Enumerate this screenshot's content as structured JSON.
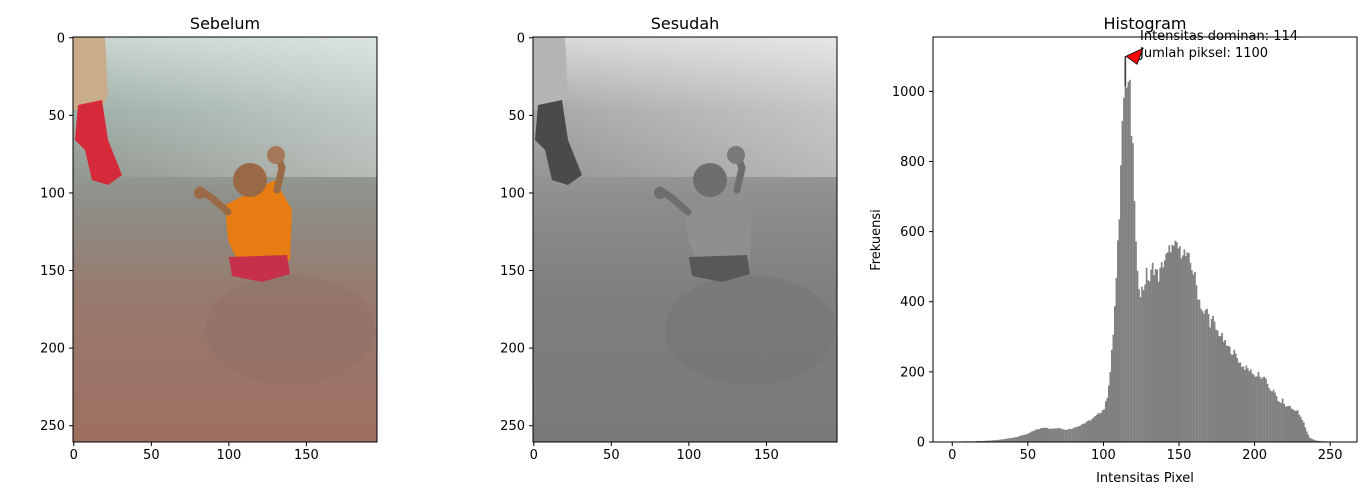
{
  "chart_data": [
    {
      "type": "image",
      "title": "Sebelum",
      "x_ticks": [
        0,
        50,
        100,
        150
      ],
      "y_ticks": [
        0,
        50,
        100,
        150,
        200,
        250
      ],
      "xlim": [
        -0.5,
        195.5
      ],
      "ylim": [
        260.5,
        -0.5
      ],
      "mode": "color"
    },
    {
      "type": "image",
      "title": "Sesudah",
      "x_ticks": [
        0,
        50,
        100,
        150
      ],
      "y_ticks": [
        0,
        50,
        100,
        150,
        200,
        250
      ],
      "xlim": [
        -0.5,
        195.5
      ],
      "ylim": [
        260.5,
        -0.5
      ],
      "mode": "grayscale"
    },
    {
      "type": "bar",
      "title": "Histogram",
      "xlabel": "Intensitas Pixel",
      "ylabel": "Frekuensi",
      "xlim": [
        -12.75,
        267.75
      ],
      "ylim": [
        0,
        1155
      ],
      "x_ticks": [
        0,
        50,
        100,
        150,
        200,
        250
      ],
      "y_ticks": [
        0,
        200,
        400,
        600,
        800,
        1000
      ],
      "bar_color": "#808080",
      "keypoints": [
        [
          0,
          1
        ],
        [
          10,
          2
        ],
        [
          20,
          3
        ],
        [
          30,
          6
        ],
        [
          40,
          12
        ],
        [
          48,
          22
        ],
        [
          55,
          35
        ],
        [
          60,
          42
        ],
        [
          65,
          38
        ],
        [
          70,
          40
        ],
        [
          75,
          35
        ],
        [
          80,
          40
        ],
        [
          85,
          50
        ],
        [
          90,
          60
        ],
        [
          95,
          75
        ],
        [
          100,
          95
        ],
        [
          102,
          130
        ],
        [
          104,
          200
        ],
        [
          106,
          310
        ],
        [
          108,
          460
        ],
        [
          110,
          650
        ],
        [
          111,
          780
        ],
        [
          112,
          950
        ],
        [
          113,
          1020
        ],
        [
          114,
          1100
        ],
        [
          115,
          1015
        ],
        [
          116,
          1030
        ],
        [
          117,
          1000
        ],
        [
          118,
          880
        ],
        [
          119,
          820
        ],
        [
          120,
          700
        ],
        [
          121,
          560
        ],
        [
          122,
          470
        ],
        [
          124,
          430
        ],
        [
          126,
          440
        ],
        [
          128,
          480
        ],
        [
          130,
          460
        ],
        [
          132,
          500
        ],
        [
          134,
          490
        ],
        [
          136,
          470
        ],
        [
          138,
          500
        ],
        [
          140,
          520
        ],
        [
          142,
          530
        ],
        [
          144,
          560
        ],
        [
          146,
          545
        ],
        [
          148,
          565
        ],
        [
          150,
          540
        ],
        [
          152,
          550
        ],
        [
          154,
          530
        ],
        [
          156,
          520
        ],
        [
          158,
          500
        ],
        [
          160,
          470
        ],
        [
          162,
          420
        ],
        [
          164,
          390
        ],
        [
          166,
          360
        ],
        [
          168,
          380
        ],
        [
          170,
          340
        ],
        [
          172,
          350
        ],
        [
          174,
          320
        ],
        [
          176,
          310
        ],
        [
          178,
          300
        ],
        [
          180,
          280
        ],
        [
          182,
          270
        ],
        [
          184,
          260
        ],
        [
          186,
          255
        ],
        [
          188,
          240
        ],
        [
          190,
          225
        ],
        [
          192,
          215
        ],
        [
          194,
          210
        ],
        [
          196,
          205
        ],
        [
          198,
          200
        ],
        [
          200,
          185
        ],
        [
          202,
          200
        ],
        [
          204,
          175
        ],
        [
          206,
          190
        ],
        [
          208,
          160
        ],
        [
          210,
          150
        ],
        [
          212,
          145
        ],
        [
          214,
          130
        ],
        [
          216,
          110
        ],
        [
          218,
          120
        ],
        [
          220,
          100
        ],
        [
          222,
          105
        ],
        [
          224,
          95
        ],
        [
          226,
          92
        ],
        [
          228,
          88
        ],
        [
          230,
          70
        ],
        [
          232,
          55
        ],
        [
          234,
          30
        ],
        [
          236,
          12
        ],
        [
          240,
          4
        ],
        [
          245,
          2
        ],
        [
          250,
          1
        ],
        [
          255,
          0
        ]
      ],
      "annotation": {
        "line1": "Intensitas dominan: 114",
        "line2": "Jumlah piksel: 1100",
        "point": [
          114,
          1100
        ],
        "arrow_color": "#ff0000"
      }
    }
  ]
}
